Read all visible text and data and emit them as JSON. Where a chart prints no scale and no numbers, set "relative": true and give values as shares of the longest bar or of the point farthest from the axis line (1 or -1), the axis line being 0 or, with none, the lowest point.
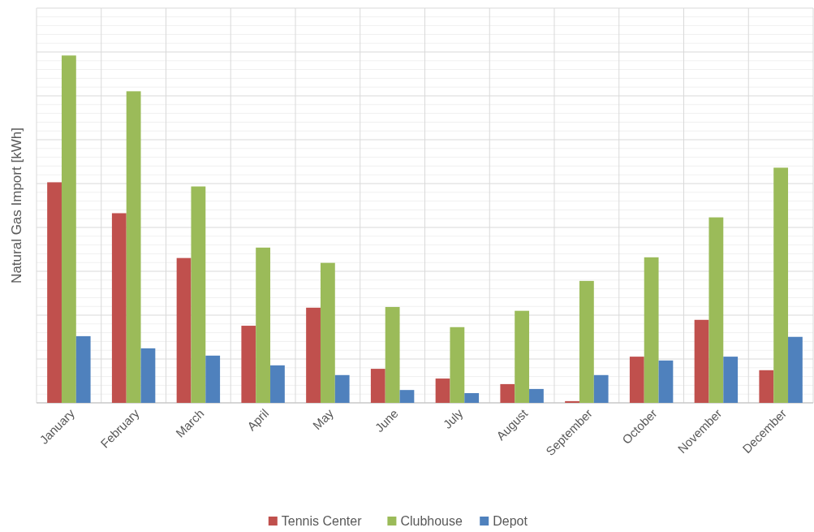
{
  "chart_data": {
    "type": "bar",
    "ylabel": "Natural Gas Import [kWh]",
    "relative": true,
    "grid": true,
    "legend": "bottom",
    "categories": [
      "January",
      "February",
      "March",
      "April",
      "May",
      "June",
      "July",
      "August",
      "September",
      "October",
      "November",
      "December"
    ],
    "series": [
      {
        "name": "Tennis Center",
        "color": "#c0504d",
        "values": [
          0.635,
          0.546,
          0.417,
          0.222,
          0.274,
          0.098,
          0.07,
          0.054,
          0.005,
          0.133,
          0.239,
          0.094
        ]
      },
      {
        "name": "Clubhouse",
        "color": "#9bbb59",
        "values": [
          1,
          0.897,
          0.623,
          0.447,
          0.403,
          0.276,
          0.218,
          0.265,
          0.351,
          0.419,
          0.534,
          0.677
        ]
      },
      {
        "name": "Depot",
        "color": "#4f81bd",
        "values": [
          0.192,
          0.157,
          0.136,
          0.108,
          0.08,
          0.037,
          0.028,
          0.04,
          0.08,
          0.122,
          0.133,
          0.19
        ]
      }
    ]
  }
}
